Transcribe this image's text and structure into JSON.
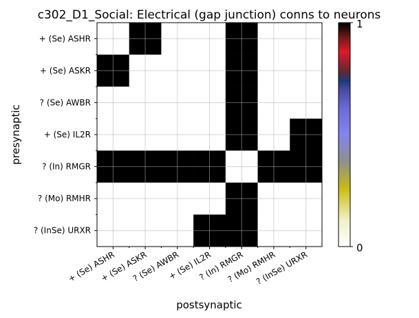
{
  "chart_data": {
    "type": "heatmap",
    "title": "c302_D1_Social: Electrical (gap junction) conns to neurons",
    "xlabel": "postsynaptic",
    "ylabel": "presynaptic",
    "x_categories": [
      "+ (Se) ASHR",
      "+ (Se) ASKR",
      "? (Se) AWBR",
      "+ (Se) IL2R",
      "? (In) RMGR",
      "? (Mo) RMHR",
      "? (InSe) URXR"
    ],
    "y_categories": [
      "+ (Se) ASHR",
      "+ (Se) ASKR",
      "? (Se) AWBR",
      "+ (Se) IL2R",
      "? (In) RMGR",
      "? (Mo) RMHR",
      "? (InSe) URXR"
    ],
    "values": [
      [
        0,
        1,
        0,
        0,
        1,
        0,
        0
      ],
      [
        1,
        0,
        0,
        0,
        1,
        0,
        0
      ],
      [
        0,
        0,
        0,
        0,
        1,
        0,
        0
      ],
      [
        0,
        0,
        0,
        0,
        1,
        0,
        1
      ],
      [
        1,
        1,
        1,
        1,
        0,
        1,
        1
      ],
      [
        0,
        0,
        0,
        0,
        1,
        0,
        0
      ],
      [
        0,
        0,
        0,
        1,
        1,
        0,
        0
      ]
    ],
    "colorbar": {
      "min": 0,
      "max": 1,
      "tick_labels": [
        "0",
        "1"
      ],
      "colormap": "gist_stern_r"
    },
    "grid": true,
    "colors": {
      "on": "#000000",
      "off": "#ffffff",
      "grid": "#b0b0b0"
    }
  }
}
